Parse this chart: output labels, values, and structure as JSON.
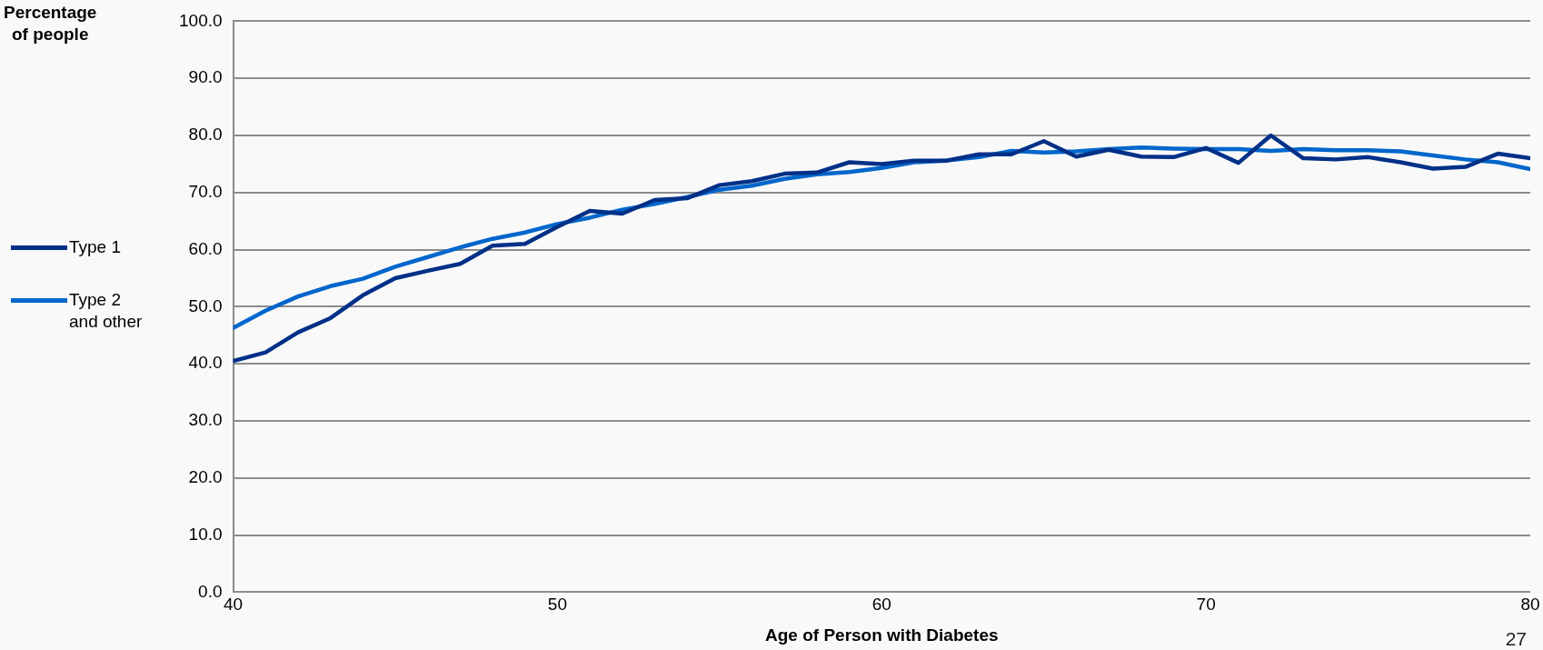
{
  "chart_data": {
    "type": "line",
    "xlabel": "Age of Person with Diabetes",
    "ylabel": "Percentage\nof people",
    "x": [
      40,
      41,
      42,
      43,
      44,
      45,
      46,
      47,
      48,
      49,
      50,
      51,
      52,
      53,
      54,
      55,
      56,
      57,
      58,
      59,
      60,
      61,
      62,
      63,
      64,
      65,
      66,
      67,
      68,
      69,
      70,
      71,
      72,
      73,
      74,
      75,
      76,
      77,
      78,
      79,
      80
    ],
    "series": [
      {
        "name": "Type 1",
        "color": "#003087",
        "values": [
          40.5,
          42,
          45.5,
          48,
          52,
          55,
          56.3,
          57.5,
          60.7,
          61,
          64,
          66.8,
          66.3,
          68.7,
          69,
          71.3,
          72,
          73.3,
          73.5,
          75.3,
          75,
          75.6,
          75.6,
          76.7,
          76.7,
          79,
          76.3,
          77.5,
          76.3,
          76.2,
          77.8,
          75.2,
          80,
          76,
          75.8,
          76.2,
          75.3,
          74.2,
          74.5,
          76.8,
          76
        ]
      },
      {
        "name": "Type 2\nand other",
        "color": "#0066cc",
        "values": [
          46.3,
          49.3,
          51.8,
          53.6,
          54.9,
          57,
          58.7,
          60.4,
          61.9,
          63,
          64.5,
          65.6,
          67,
          68,
          69.2,
          70.5,
          71.2,
          72.4,
          73.2,
          73.6,
          74.3,
          75.3,
          75.6,
          76.2,
          77.3,
          77,
          77.2,
          77.6,
          77.9,
          77.7,
          77.6,
          77.6,
          77.3,
          77.6,
          77.4,
          77.4,
          77.2,
          76.5,
          75.8,
          75.3,
          74.1
        ]
      }
    ],
    "xlim": [
      40,
      80
    ],
    "xticks": [
      40,
      50,
      60,
      70,
      80
    ],
    "ylim": [
      0,
      100
    ],
    "yticks": [
      {
        "value": 0,
        "label": "0.0"
      },
      {
        "value": 10,
        "label": "10.0"
      },
      {
        "value": 20,
        "label": "20.0"
      },
      {
        "value": 30,
        "label": "30.0"
      },
      {
        "value": 40,
        "label": "40.0"
      },
      {
        "value": 50,
        "label": "50.0"
      },
      {
        "value": 60,
        "label": "60.0"
      },
      {
        "value": 70,
        "label": "70.0"
      },
      {
        "value": 80,
        "label": "80.0"
      },
      {
        "value": 90,
        "label": "90.0"
      },
      {
        "value": 100,
        "label": "100.0"
      }
    ],
    "grid": "y",
    "legend": "left",
    "marker": "none",
    "line_style": "solid",
    "annotations": [
      "27"
    ]
  }
}
